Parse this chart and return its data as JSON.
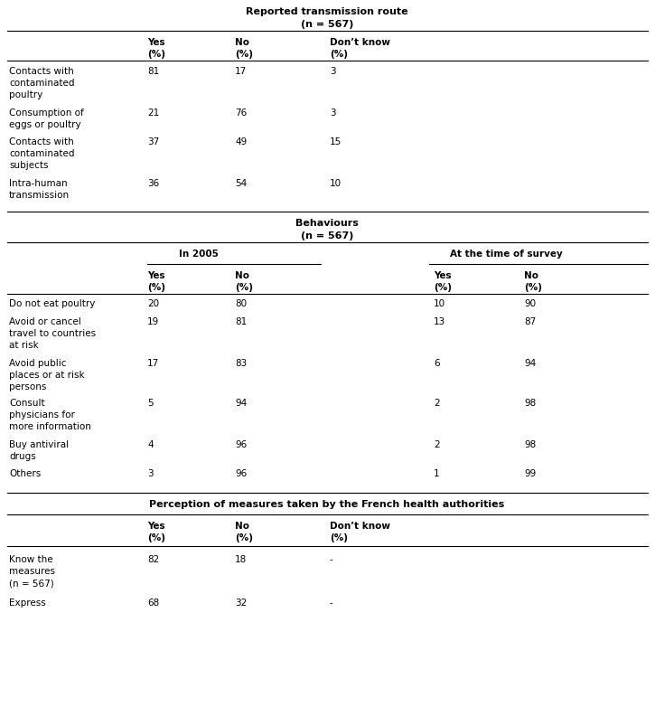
{
  "title1": "Reported transmission route",
  "title1_sub": "(n = 567)",
  "section1_headers_line1": [
    "Yes",
    "No",
    "Don’t know"
  ],
  "section1_headers_line2": [
    "(%)",
    "(%)",
    "(%)"
  ],
  "section1_rows": [
    [
      "Contacts with\ncontaminated\npoultry",
      "81",
      "17",
      "3"
    ],
    [
      "Consumption of\neggs or poultry",
      "21",
      "76",
      "3"
    ],
    [
      "Contacts with\ncontaminated\nsubjects",
      "37",
      "49",
      "15"
    ],
    [
      "Intra-human\ntransmission",
      "36",
      "54",
      "10"
    ]
  ],
  "title2": "Behaviours",
  "title2_sub": "(n = 567)",
  "section2_subheader_left": "In 2005",
  "section2_subheader_right": "At the time of survey",
  "section2_headers_line1": [
    "Yes",
    "No",
    "Yes",
    "No"
  ],
  "section2_headers_line2": [
    "(%)",
    "(%)",
    "(%)",
    "(%)"
  ],
  "section2_rows": [
    [
      "Do not eat poultry",
      "20",
      "80",
      "10",
      "90"
    ],
    [
      "Avoid or cancel\ntravel to countries\nat risk",
      "19",
      "81",
      "13",
      "87"
    ],
    [
      "Avoid public\nplaces or at risk\npersons",
      "17",
      "83",
      "6",
      "94"
    ],
    [
      "Consult\nphysicians for\nmore information",
      "5",
      "94",
      "2",
      "98"
    ],
    [
      "Buy antiviral\ndrugs",
      "4",
      "96",
      "2",
      "98"
    ],
    [
      "Others",
      "3",
      "96",
      "1",
      "99"
    ]
  ],
  "title3": "Perception of measures taken by the French health authorities",
  "section3_headers_line1": [
    "Yes",
    "No",
    "Don’t know"
  ],
  "section3_headers_line2": [
    "(%)",
    "(%)",
    "(%)"
  ],
  "section3_rows": [
    [
      "Know the\nmeasures\n(n = 567)",
      "82",
      "18",
      "-"
    ],
    [
      "Express",
      "68",
      "32",
      "-"
    ]
  ],
  "bg_color": "#ffffff",
  "text_color": "#000000"
}
